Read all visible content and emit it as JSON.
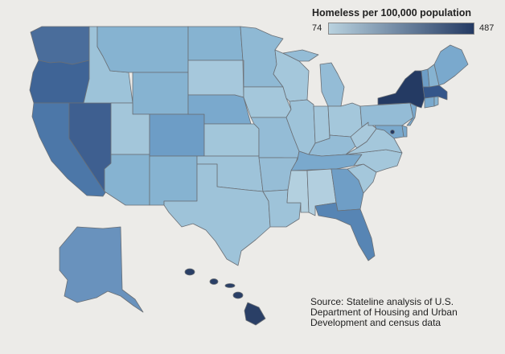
{
  "legend": {
    "title": "Homeless per 100,000 population",
    "min": "74",
    "max": "487",
    "color_low": "#b9d2df",
    "color_high": "#243a63"
  },
  "source": "Source: Stateline analysis of U.S. Department of Housing and Urban Development and census data",
  "state_colors": {
    "WA": "#4a6d9b",
    "OR": "#3f6496",
    "CA": "#4c77a8",
    "NV": "#3e5f90",
    "ID": "#9dc3d9",
    "MT": "#86b3d1",
    "WY": "#86b3d1",
    "UT": "#a3c6da",
    "AZ": "#86b3d1",
    "NM": "#86b3d1",
    "CO": "#6d9dc6",
    "ND": "#86b3d1",
    "SD": "#a6c8dc",
    "NE": "#7aa9cd",
    "KS": "#a2c6da",
    "OK": "#9ec3d9",
    "TX": "#9ec3d9",
    "MN": "#8fb9d4",
    "IA": "#a4c7db",
    "MO": "#94bcd6",
    "AR": "#96bdd6",
    "LA": "#9ec3d9",
    "WI": "#a4c7db",
    "IL": "#9ec3d9",
    "MI": "#94bcd6",
    "IN": "#a4c7db",
    "OH": "#a4c7db",
    "KY": "#94bcd6",
    "TN": "#7aa9cd",
    "MS": "#b3d0df",
    "AL": "#b2cfdf",
    "GA": "#6f9ec6",
    "FL": "#5785b4",
    "SC": "#a4c7db",
    "NC": "#a4c7db",
    "VA": "#a4c7db",
    "WV": "#a8c9dc",
    "PA": "#94bcd6",
    "NY": "#243a63",
    "VT": "#6d9dc6",
    "NH": "#86b3d1",
    "ME": "#7aa9cd",
    "MA": "#34568a",
    "RI": "#86b3d1",
    "CT": "#7aa9cd",
    "NJ": "#7aa9cd",
    "DE": "#7aa9cd",
    "MD": "#7aa9cd",
    "DC": "#243a63",
    "AK": "#6992bd",
    "HI": "#2a3f66"
  }
}
